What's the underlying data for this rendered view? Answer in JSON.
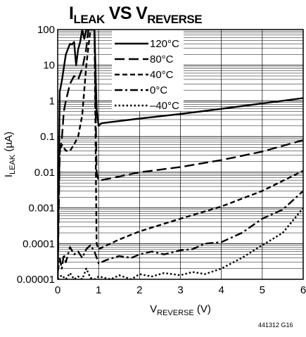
{
  "chart_data": {
    "type": "line",
    "title": {
      "main_1": "I",
      "sub_1": "LEAK",
      "mid": "VS",
      "main_2": "V",
      "sub_2": "REVERSE"
    },
    "xlabel": {
      "main": "V",
      "sub": "REVERSE",
      "unit": " (V)"
    },
    "ylabel": {
      "main": "I",
      "sub": "LEAK",
      "unit": " (µA)"
    },
    "x_scale": "linear",
    "y_scale": "log",
    "xlim": [
      0,
      6
    ],
    "ylim": [
      1e-05,
      100
    ],
    "x_ticks": [
      "0",
      "1",
      "2",
      "3",
      "4",
      "5",
      "6"
    ],
    "y_ticks": [
      "0.00001",
      "0.0001",
      "0.001",
      "0.01",
      "0.1",
      "1",
      "10",
      "100"
    ],
    "grid": true,
    "legend_position": "top-right",
    "series": [
      {
        "name": "120°C",
        "dash": "solid",
        "x": [
          0,
          0.05,
          0.1,
          0.2,
          0.3,
          0.35,
          0.4,
          0.45,
          0.5,
          0.55,
          0.6,
          0.65,
          0.7,
          0.75,
          0.8,
          0.85,
          0.9,
          0.95,
          1.0,
          1.05,
          1.1,
          2,
          3,
          4,
          5,
          6
        ],
        "y": [
          1e-05,
          1.8,
          3.5,
          20,
          40,
          38,
          45,
          10,
          28,
          45,
          100,
          55,
          100,
          100,
          100,
          100,
          100,
          0.6,
          0.2,
          0.23,
          0.24,
          0.32,
          0.43,
          0.6,
          0.85,
          1.2
        ]
      },
      {
        "name": "80°C",
        "dash": "long-dash",
        "x": [
          0,
          0.05,
          0.1,
          0.15,
          0.2,
          0.3,
          0.4,
          0.5,
          0.6,
          0.65,
          0.7,
          0.75,
          0.8,
          0.85,
          0.9,
          0.95,
          1.0,
          2,
          3,
          4,
          5,
          6
        ],
        "y": [
          1e-05,
          0.04,
          0.08,
          0.5,
          1.0,
          3,
          5,
          4,
          8,
          15,
          30,
          100,
          100,
          100,
          100,
          0.01,
          0.0058,
          0.01,
          0.014,
          0.022,
          0.038,
          0.08
        ]
      },
      {
        "name": "40°C",
        "dash": "dash",
        "x": [
          0,
          0.02,
          0.05,
          0.1,
          0.2,
          0.3,
          0.4,
          0.5,
          0.6,
          0.7,
          0.8,
          0.85,
          0.9,
          0.95,
          1.0,
          1.2,
          1.5,
          2,
          3,
          4,
          5,
          6
        ],
        "y": [
          1e-05,
          0.002,
          0.035,
          0.06,
          0.04,
          0.04,
          0.06,
          0.1,
          0.4,
          10,
          100,
          100,
          100,
          0.0001,
          7e-05,
          9e-05,
          0.00013,
          0.00022,
          0.0005,
          0.0011,
          0.003,
          0.011
        ]
      },
      {
        "name": "0°C",
        "dash": "dash-dot",
        "x": [
          0,
          0.05,
          0.1,
          0.15,
          0.2,
          0.3,
          0.4,
          0.5,
          0.6,
          0.7,
          0.8,
          0.9,
          1.0,
          1.2,
          1.5,
          1.8,
          2,
          2.3,
          2.6,
          3,
          3.3,
          3.6,
          4,
          4.5,
          5,
          5.5,
          6
        ],
        "y": [
          1.5e-05,
          4e-05,
          2e-05,
          5e-05,
          3e-05,
          8e-05,
          5e-05,
          6e-05,
          4e-05,
          7e-05,
          9e-05,
          6e-05,
          2.8e-05,
          3.5e-05,
          4.5e-05,
          4e-05,
          5e-05,
          6e-05,
          5e-05,
          6.5e-05,
          7e-05,
          0.0001,
          0.00011,
          0.0002,
          0.0005,
          0.0009,
          0.003
        ]
      },
      {
        "name": "–40°C",
        "dash": "dot",
        "x": [
          0,
          0.1,
          0.2,
          0.3,
          0.4,
          0.5,
          0.6,
          0.7,
          0.8,
          0.9,
          1.0,
          1.3,
          1.5,
          1.8,
          2,
          2.3,
          2.6,
          3,
          3.3,
          3.6,
          4,
          4.5,
          5,
          5.5,
          6
        ],
        "y": [
          1e-05,
          1.3e-05,
          1e-05,
          1.5e-05,
          1e-05,
          1.2e-05,
          1e-05,
          2e-05,
          1.1e-05,
          1e-05,
          1.2e-05,
          1e-05,
          1.3e-05,
          1e-05,
          1.4e-05,
          1.2e-05,
          1.5e-05,
          1.3e-05,
          1.6e-05,
          1.4e-05,
          2e-05,
          4e-05,
          9e-05,
          0.0002,
          0.001
        ]
      }
    ]
  },
  "figure_code": "441312 G16"
}
